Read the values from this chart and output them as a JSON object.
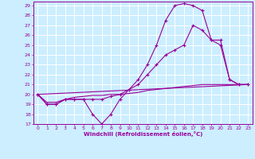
{
  "xlabel": "Windchill (Refroidissement éolien,°C)",
  "bg_color": "#cceeff",
  "line_color": "#990099",
  "xlim": [
    -0.5,
    23.5
  ],
  "ylim": [
    17,
    29.4
  ],
  "yticks": [
    17,
    18,
    19,
    20,
    21,
    22,
    23,
    24,
    25,
    26,
    27,
    28,
    29
  ],
  "xticks": [
    0,
    1,
    2,
    3,
    4,
    5,
    6,
    7,
    8,
    9,
    10,
    11,
    12,
    13,
    14,
    15,
    16,
    17,
    18,
    19,
    20,
    21,
    22,
    23
  ],
  "line1_x": [
    0,
    1,
    2,
    3,
    4,
    5,
    6,
    7,
    8,
    9,
    10,
    11,
    12,
    13,
    14,
    15,
    16,
    17,
    18,
    19,
    20,
    21,
    22,
    23
  ],
  "line1_y": [
    20.0,
    19.0,
    19.0,
    19.5,
    19.5,
    19.5,
    18.0,
    17.0,
    18.0,
    19.5,
    20.5,
    21.5,
    23.0,
    25.0,
    27.5,
    29.0,
    29.2,
    29.0,
    28.5,
    25.5,
    25.0,
    21.5,
    21.0,
    21.0
  ],
  "line2_x": [
    0,
    1,
    2,
    3,
    4,
    5,
    6,
    7,
    8,
    9,
    10,
    11,
    12,
    13,
    14,
    15,
    16,
    17,
    18,
    19,
    20,
    21,
    22,
    23
  ],
  "line2_y": [
    20.0,
    19.0,
    19.0,
    19.5,
    19.5,
    19.5,
    19.5,
    19.5,
    19.8,
    20.0,
    20.5,
    21.0,
    22.0,
    23.0,
    24.0,
    24.5,
    25.0,
    27.0,
    26.5,
    25.5,
    25.5,
    21.5,
    21.0,
    21.0
  ],
  "line3_x": [
    0,
    23
  ],
  "line3_y": [
    20.0,
    21.0
  ],
  "line4_x": [
    0,
    1,
    2,
    3,
    4,
    5,
    6,
    7,
    8,
    9,
    10,
    11,
    12,
    13,
    14,
    15,
    16,
    17,
    18,
    19,
    20,
    21,
    22,
    23
  ],
  "line4_y": [
    20.0,
    19.2,
    19.2,
    19.5,
    19.7,
    19.8,
    19.9,
    19.9,
    20.0,
    20.0,
    20.1,
    20.2,
    20.4,
    20.5,
    20.6,
    20.7,
    20.8,
    20.9,
    21.0,
    21.0,
    21.0,
    21.0,
    21.0,
    21.0
  ]
}
